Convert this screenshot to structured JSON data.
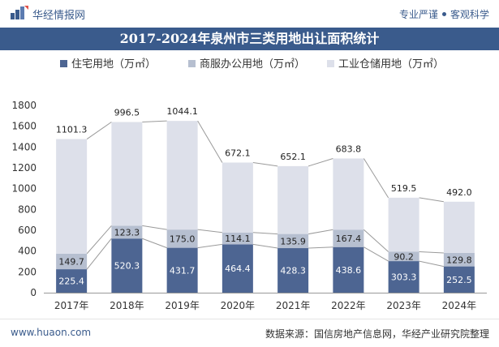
{
  "header": {
    "brand": "华经情报网",
    "tagline_left": "专业严谨",
    "tagline_right": "客观科学"
  },
  "title": "2017-2024年泉州市三类用地出让面积统计",
  "legend": [
    {
      "label": "住宅用地（万㎡）",
      "color": "#4d6592"
    },
    {
      "label": "商服办公用地（万㎡）",
      "color": "#b6bfd0"
    },
    {
      "label": "工业仓储用地（万㎡）",
      "color": "#dde0ea"
    }
  ],
  "chart_data": {
    "type": "bar",
    "stacked": true,
    "categories": [
      "2017年",
      "2018年",
      "2019年",
      "2020年",
      "2021年",
      "2022年",
      "2023年",
      "2024年"
    ],
    "series": [
      {
        "name": "住宅用地（万㎡）",
        "color": "#4d6592",
        "values": [
          225.4,
          520.3,
          431.7,
          464.4,
          428.3,
          438.6,
          303.3,
          252.5
        ]
      },
      {
        "name": "商服办公用地（万㎡）",
        "color": "#b6bfd0",
        "values": [
          149.7,
          123.3,
          175.0,
          114.1,
          135.9,
          167.4,
          90.2,
          129.8
        ]
      },
      {
        "name": "工业仓储用地（万㎡）",
        "color": "#dde0ea",
        "values": [
          1101.3,
          996.5,
          1044.1,
          672.1,
          652.1,
          683.8,
          519.5,
          492.0
        ]
      }
    ],
    "ylim": [
      0,
      1800
    ],
    "yticks": [
      0,
      200,
      400,
      600,
      800,
      1000,
      1200,
      1400,
      1600,
      1800
    ],
    "connector_lines": true,
    "grid": false,
    "legend_position": "top"
  },
  "footer": {
    "site": "www.huaon.com",
    "source": "数据来源：国信房地产信息网，华经产业研究院整理"
  }
}
